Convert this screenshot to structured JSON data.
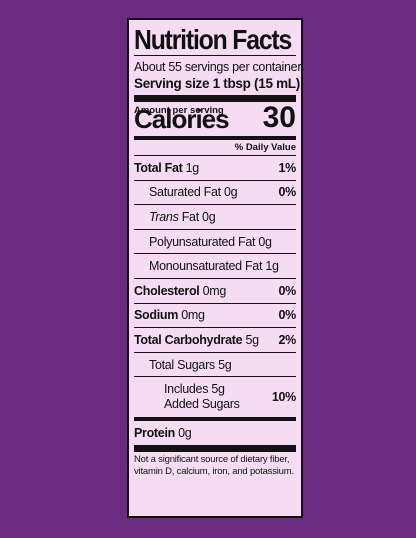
{
  "label": {
    "title": "Nutrition Facts",
    "servings_per_container": "About 55 servings per container",
    "serving_size": "Serving size 1 tbsp (15 mL)",
    "amount_per_serving": "Amount per serving",
    "calories_label": "Calories",
    "calories_value": "30",
    "daily_value_header": "% Daily Value",
    "nutrients": [
      {
        "name": "Total Fat",
        "amount": "1g",
        "dv": "1%"
      },
      {
        "name": "Saturated Fat",
        "amount": "0g",
        "dv": "0%"
      },
      {
        "name": "Trans",
        "amount": "Fat 0g",
        "dv": ""
      },
      {
        "name": "Polyunsaturated Fat",
        "amount": "0g",
        "dv": ""
      },
      {
        "name": "Monounsaturated Fat",
        "amount": "1g",
        "dv": ""
      },
      {
        "name": "Cholesterol",
        "amount": "0mg",
        "dv": "0%"
      },
      {
        "name": "Sodium",
        "amount": "0mg",
        "dv": "0%"
      },
      {
        "name": "Total Carbohydrate",
        "amount": "5g",
        "dv": "2%"
      },
      {
        "name": "Total Sugars",
        "amount": "5g",
        "dv": ""
      },
      {
        "name": "Includes 5g",
        "amount": "Added Sugars",
        "dv": "10%"
      },
      {
        "name": "Protein",
        "amount": "0g",
        "dv": ""
      }
    ],
    "footnote": "Not a significant source of dietary fiber, vitamin D, calcium, iron, and potassium."
  }
}
